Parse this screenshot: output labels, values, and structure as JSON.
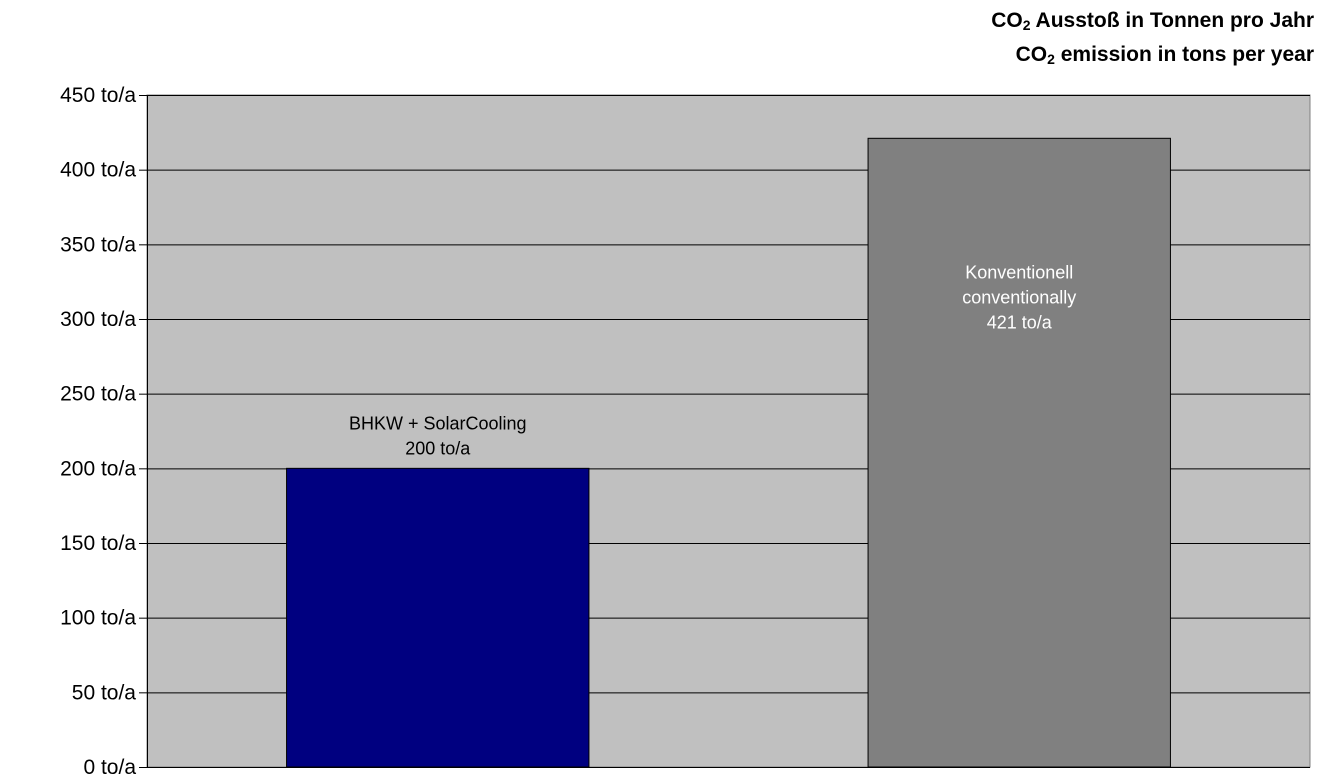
{
  "title": {
    "line1_prefix": "CO",
    "line1_sub": "2",
    "line1_suffix": " Ausstoß in Tonnen pro Jahr",
    "line2_prefix": "CO",
    "line2_sub": "2",
    "line2_suffix": " emission in tons per year"
  },
  "chart_data": {
    "type": "bar",
    "title": "CO2 Ausstoß in Tonnen pro Jahr / CO2 emission in tons per year",
    "xlabel": "",
    "ylabel": "",
    "ylim": [
      0,
      450
    ],
    "yticks": [
      0,
      50,
      100,
      150,
      200,
      250,
      300,
      350,
      400,
      450
    ],
    "ytick_suffix": " to/a",
    "grid": true,
    "legend": "none",
    "plot_background": "#c0c0c0",
    "categories": [
      "BHKW + SolarCooling",
      "Konventionell conventionally"
    ],
    "values": [
      200,
      421
    ],
    "bars": [
      {
        "label_lines": [
          "BHKW + SolarCooling",
          "200 to/a"
        ],
        "value": 200,
        "color": "#000080",
        "label_color": "#000000",
        "label_position": "above"
      },
      {
        "label_lines": [
          "Konventionell",
          "conventionally",
          "421 to/a"
        ],
        "value": 421,
        "color": "#808080",
        "label_color": "#ffffff",
        "label_position": "inside"
      }
    ]
  }
}
